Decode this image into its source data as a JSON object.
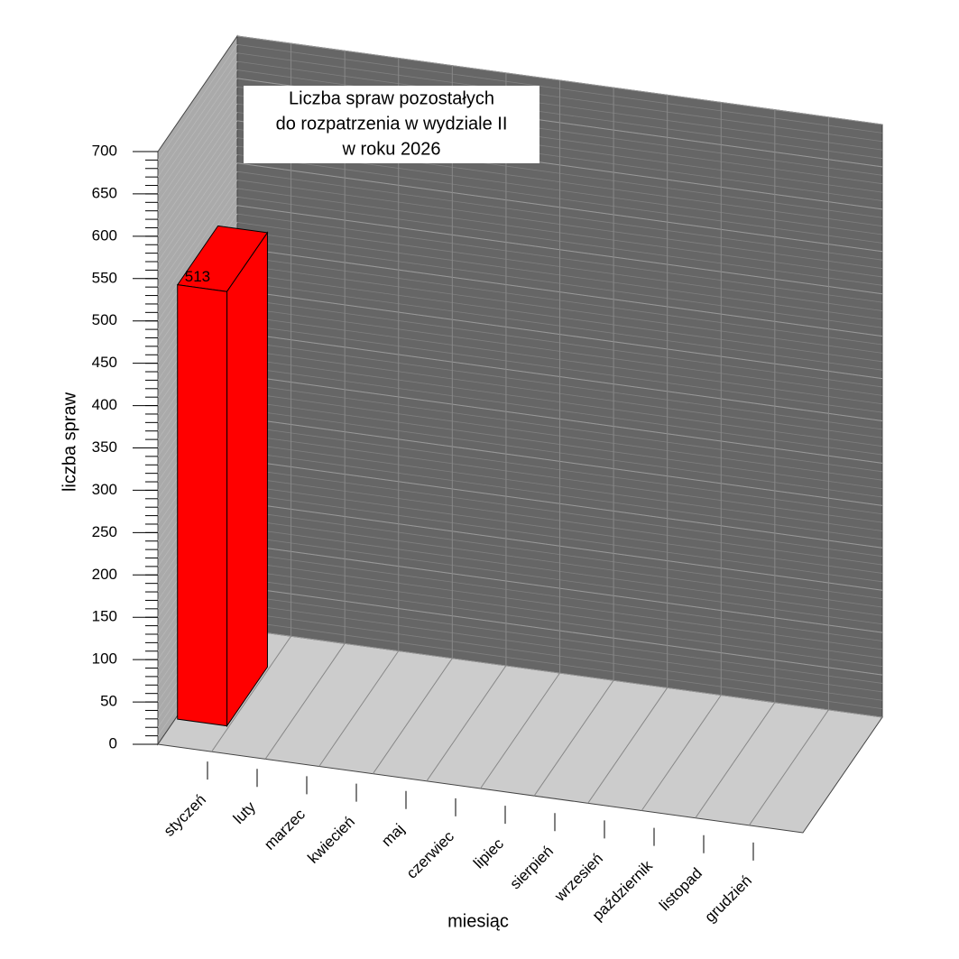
{
  "chart_data": {
    "type": "bar",
    "title": [
      "Liczba spraw pozostałych",
      "do rozpatrzenia w  wydziale II",
      "w roku 2026"
    ],
    "x_label": "miesiąc",
    "y_label": "liczba spraw",
    "categories": [
      "styczeń",
      "luty",
      "marzec",
      "kwiecień",
      "maj",
      "czerwiec",
      "lipiec",
      "sierpień",
      "wrzesień",
      "październik",
      "listopad",
      "grudzień"
    ],
    "values": [
      513,
      null,
      null,
      null,
      null,
      null,
      null,
      null,
      null,
      null,
      null,
      null
    ],
    "color": "#ff0000",
    "ylim": [
      0,
      700
    ],
    "yticks": [
      0,
      50,
      100,
      150,
      200,
      250,
      300,
      350,
      400,
      450,
      500,
      550,
      600,
      650,
      700
    ],
    "grid": true
  }
}
